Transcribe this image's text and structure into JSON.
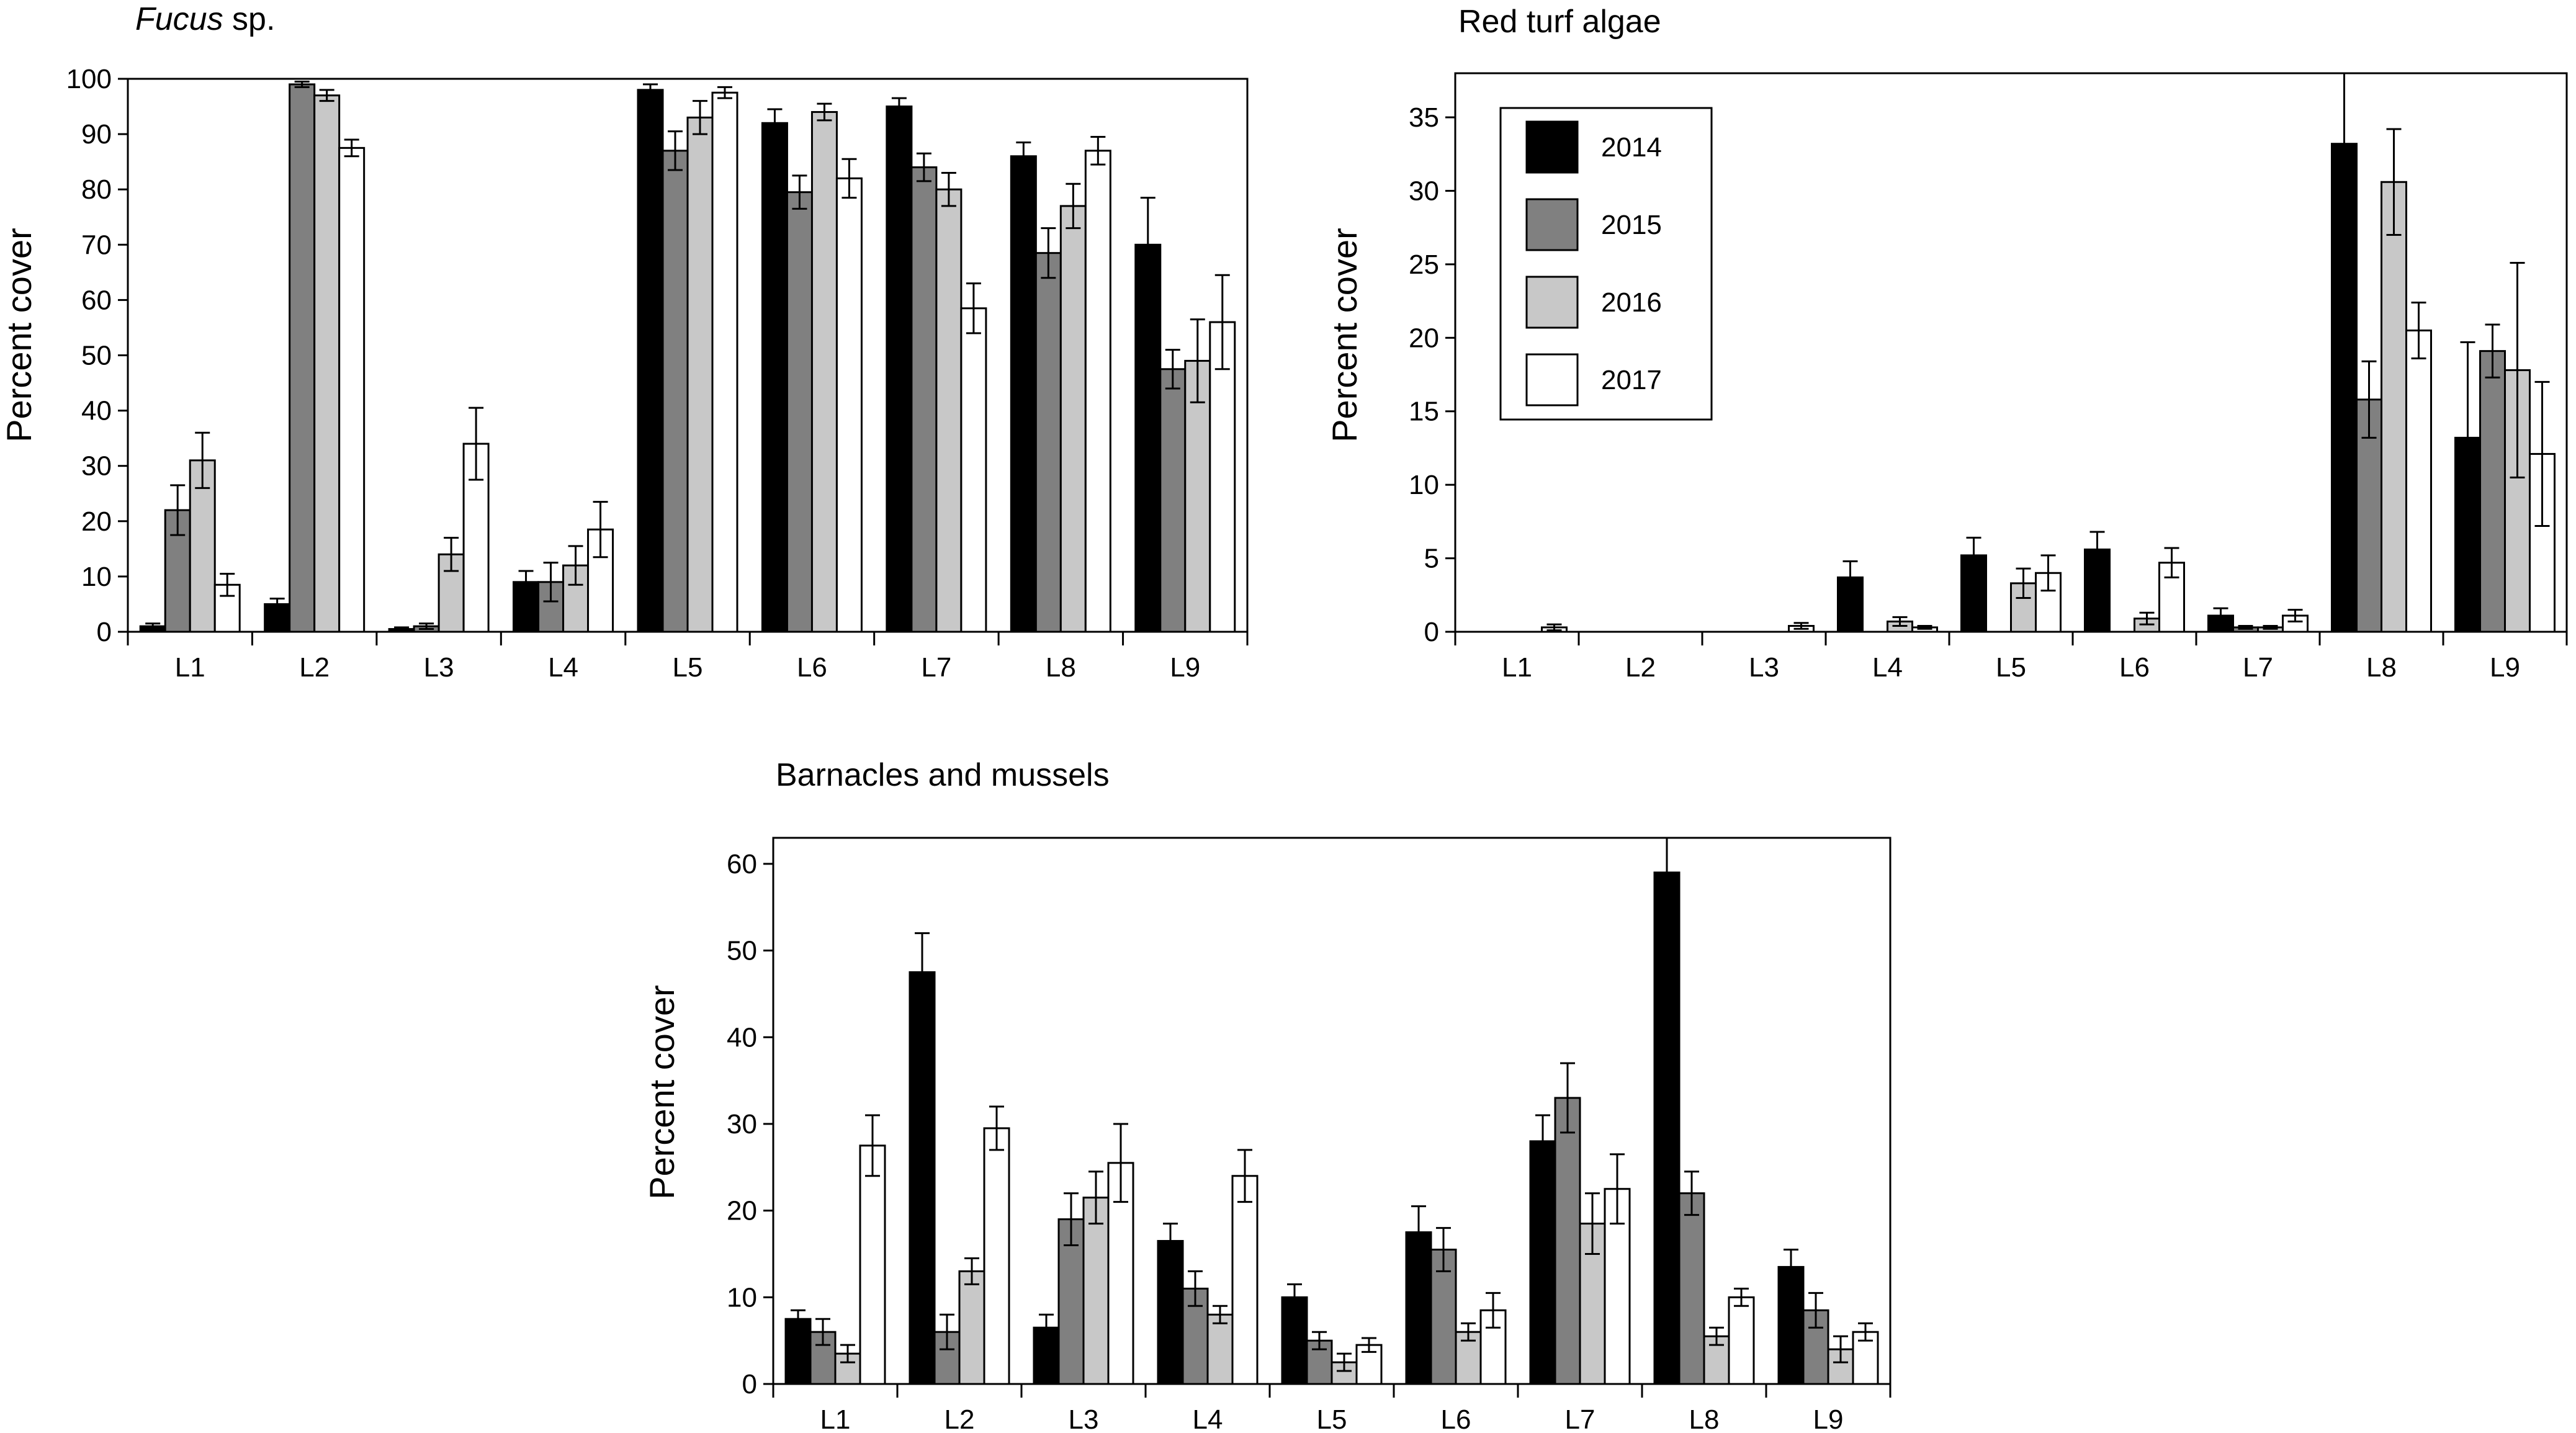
{
  "chart_data": [
    {
      "type": "bar",
      "title_italic": "Fucus",
      "title_rest": " sp.",
      "ylabel": "Percent cover",
      "ylim": [
        0,
        100
      ],
      "yticks": [
        0,
        10,
        20,
        30,
        40,
        50,
        60,
        70,
        80,
        90,
        100
      ],
      "categories": [
        "L1",
        "L2",
        "L3",
        "L4",
        "L5",
        "L6",
        "L7",
        "L8",
        "L9"
      ],
      "series": [
        {
          "name": "2014",
          "color": "#000000",
          "values": [
            1,
            5,
            0.5,
            9,
            98,
            92,
            95,
            86,
            70
          ],
          "errors": [
            0.5,
            1,
            0.3,
            2,
            1,
            2.5,
            1.5,
            2.5,
            8.5
          ]
        },
        {
          "name": "2015",
          "color": "#808080",
          "values": [
            22,
            99,
            1,
            9,
            87,
            79.5,
            84,
            68.5,
            47.5
          ],
          "errors": [
            4.5,
            0.5,
            0.5,
            3.5,
            3.5,
            3,
            2.5,
            4.5,
            3.5
          ]
        },
        {
          "name": "2016",
          "color": "#c8c8c8",
          "values": [
            31,
            97,
            14,
            12,
            93,
            94,
            80,
            77,
            49
          ],
          "errors": [
            5,
            1,
            3,
            3.5,
            3,
            1.5,
            3,
            4,
            7.5
          ]
        },
        {
          "name": "2017",
          "color": "#ffffff",
          "values": [
            8.5,
            87.5,
            34,
            18.5,
            97.5,
            82,
            58.5,
            87,
            56
          ],
          "errors": [
            2,
            1.5,
            6.5,
            5,
            1,
            3.5,
            4.5,
            2.5,
            8.5
          ]
        }
      ]
    },
    {
      "type": "bar",
      "title": "Red turf algae",
      "ylabel": "Percent cover",
      "ylim": [
        0,
        38
      ],
      "yticks": [
        0,
        5,
        10,
        15,
        20,
        25,
        30,
        35
      ],
      "categories": [
        "L1",
        "L2",
        "L3",
        "L4",
        "L5",
        "L6",
        "L7",
        "L8",
        "L9"
      ],
      "legend": {
        "position": "top-left",
        "entries": [
          "2014",
          "2015",
          "2016",
          "2017"
        ]
      },
      "series": [
        {
          "name": "2014",
          "color": "#000000",
          "values": [
            0,
            0,
            0,
            3.7,
            5.2,
            5.6,
            1.1,
            33.2,
            13.2
          ],
          "errors": [
            0,
            0,
            0,
            1.1,
            1.2,
            1.2,
            0.5,
            5.3,
            6.5
          ]
        },
        {
          "name": "2015",
          "color": "#808080",
          "values": [
            0,
            0,
            0,
            0,
            0,
            0,
            0.3,
            15.8,
            19.1
          ],
          "errors": [
            0,
            0,
            0,
            0,
            0,
            0,
            0.1,
            2.6,
            1.8
          ]
        },
        {
          "name": "2016",
          "color": "#c8c8c8",
          "values": [
            0,
            0,
            0,
            0.7,
            3.3,
            0.9,
            0.3,
            30.6,
            17.8
          ],
          "errors": [
            0,
            0,
            0,
            0.3,
            1,
            0.4,
            0.1,
            3.6,
            7.3
          ]
        },
        {
          "name": "2017",
          "color": "#ffffff",
          "values": [
            0.3,
            0,
            0.4,
            0.3,
            4,
            4.7,
            1.1,
            20.5,
            12.1
          ],
          "errors": [
            0.2,
            0,
            0.2,
            0.1,
            1.2,
            1,
            0.4,
            1.9,
            4.9
          ]
        }
      ]
    },
    {
      "type": "bar",
      "title": "Barnacles and mussels",
      "ylabel": "Percent cover",
      "ylim": [
        0,
        63
      ],
      "yticks": [
        0,
        10,
        20,
        30,
        40,
        50,
        60
      ],
      "categories": [
        "L1",
        "L2",
        "L3",
        "L4",
        "L5",
        "L6",
        "L7",
        "L8",
        "L9"
      ],
      "series": [
        {
          "name": "2014",
          "color": "#000000",
          "values": [
            7.5,
            47.5,
            6.5,
            16.5,
            10,
            17.5,
            28,
            59,
            13.5
          ],
          "errors": [
            1,
            4.5,
            1.5,
            2,
            1.5,
            3,
            3,
            4,
            2
          ]
        },
        {
          "name": "2015",
          "color": "#808080",
          "values": [
            6,
            6,
            19,
            11,
            5,
            15.5,
            33,
            22,
            8.5
          ],
          "errors": [
            1.5,
            2,
            3,
            2,
            1,
            2.5,
            4,
            2.5,
            2
          ]
        },
        {
          "name": "2016",
          "color": "#c8c8c8",
          "values": [
            3.5,
            13,
            21.5,
            8,
            2.5,
            6,
            18.5,
            5.5,
            4
          ],
          "errors": [
            1,
            1.5,
            3,
            1,
            1,
            1,
            3.5,
            1,
            1.5
          ]
        },
        {
          "name": "2017",
          "color": "#ffffff",
          "values": [
            27.5,
            29.5,
            25.5,
            24,
            4.5,
            8.5,
            22.5,
            10,
            6
          ],
          "errors": [
            3.5,
            2.5,
            4.5,
            3,
            0.8,
            2,
            4,
            1,
            1
          ]
        }
      ]
    }
  ]
}
